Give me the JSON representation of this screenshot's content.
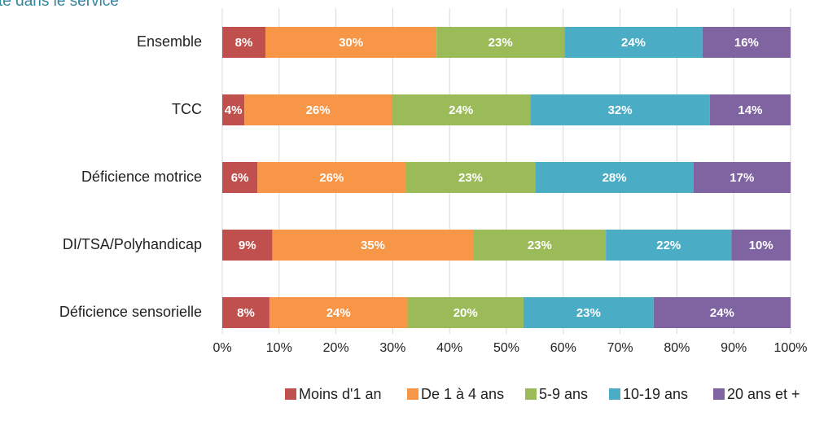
{
  "chart_data": {
    "type": "stacked_barh",
    "title": "té dans le service",
    "categories": [
      "Ensemble",
      "TCC",
      "Déficience motrice",
      "DI/TSA/Polyhandicap",
      "Déficience sensorielle"
    ],
    "series": [
      {
        "name": "Moins d'1 an",
        "color": "#c0504d",
        "values": [
          7.6,
          3.9,
          6.2,
          8.8,
          8.3
        ],
        "value_labels": [
          "8%",
          "4%",
          "6%",
          "9%",
          "8%"
        ]
      },
      {
        "name": "De 1 à 4 ans",
        "color": "#f79646",
        "values": [
          30.1,
          25.9,
          26.1,
          35.4,
          24.3
        ],
        "value_labels": [
          "30%",
          "26%",
          "26%",
          "35%",
          "24%"
        ]
      },
      {
        "name": "5-9 ans",
        "color": "#9bbb59",
        "values": [
          22.5,
          24.4,
          22.8,
          23.3,
          20.4
        ],
        "value_labels": [
          "23%",
          "24%",
          "23%",
          "23%",
          "20%"
        ]
      },
      {
        "name": "10-19 ans",
        "color": "#4bacc6",
        "values": [
          24.3,
          31.6,
          27.8,
          22.1,
          22.9
        ],
        "value_labels": [
          "24%",
          "32%",
          "28%",
          "22%",
          "23%"
        ]
      },
      {
        "name": "20 ans et +",
        "color": "#8064a2",
        "values": [
          15.5,
          14.2,
          17.1,
          10.4,
          24.1
        ],
        "value_labels": [
          "16%",
          "14%",
          "17%",
          "10%",
          "24%"
        ]
      }
    ],
    "xlim": [
      0,
      100
    ],
    "xticks": [
      {
        "value": 0,
        "label": "0%"
      },
      {
        "value": 10,
        "label": "10%"
      },
      {
        "value": 20,
        "label": "20%"
      },
      {
        "value": 30,
        "label": "30%"
      },
      {
        "value": 40,
        "label": "40%"
      },
      {
        "value": 50,
        "label": "50%"
      },
      {
        "value": 60,
        "label": "60%"
      },
      {
        "value": 70,
        "label": "70%"
      },
      {
        "value": 80,
        "label": "80%"
      },
      {
        "value": 90,
        "label": "90%"
      },
      {
        "value": 100,
        "label": "100%"
      }
    ],
    "grid": true,
    "legend": "bottom"
  }
}
